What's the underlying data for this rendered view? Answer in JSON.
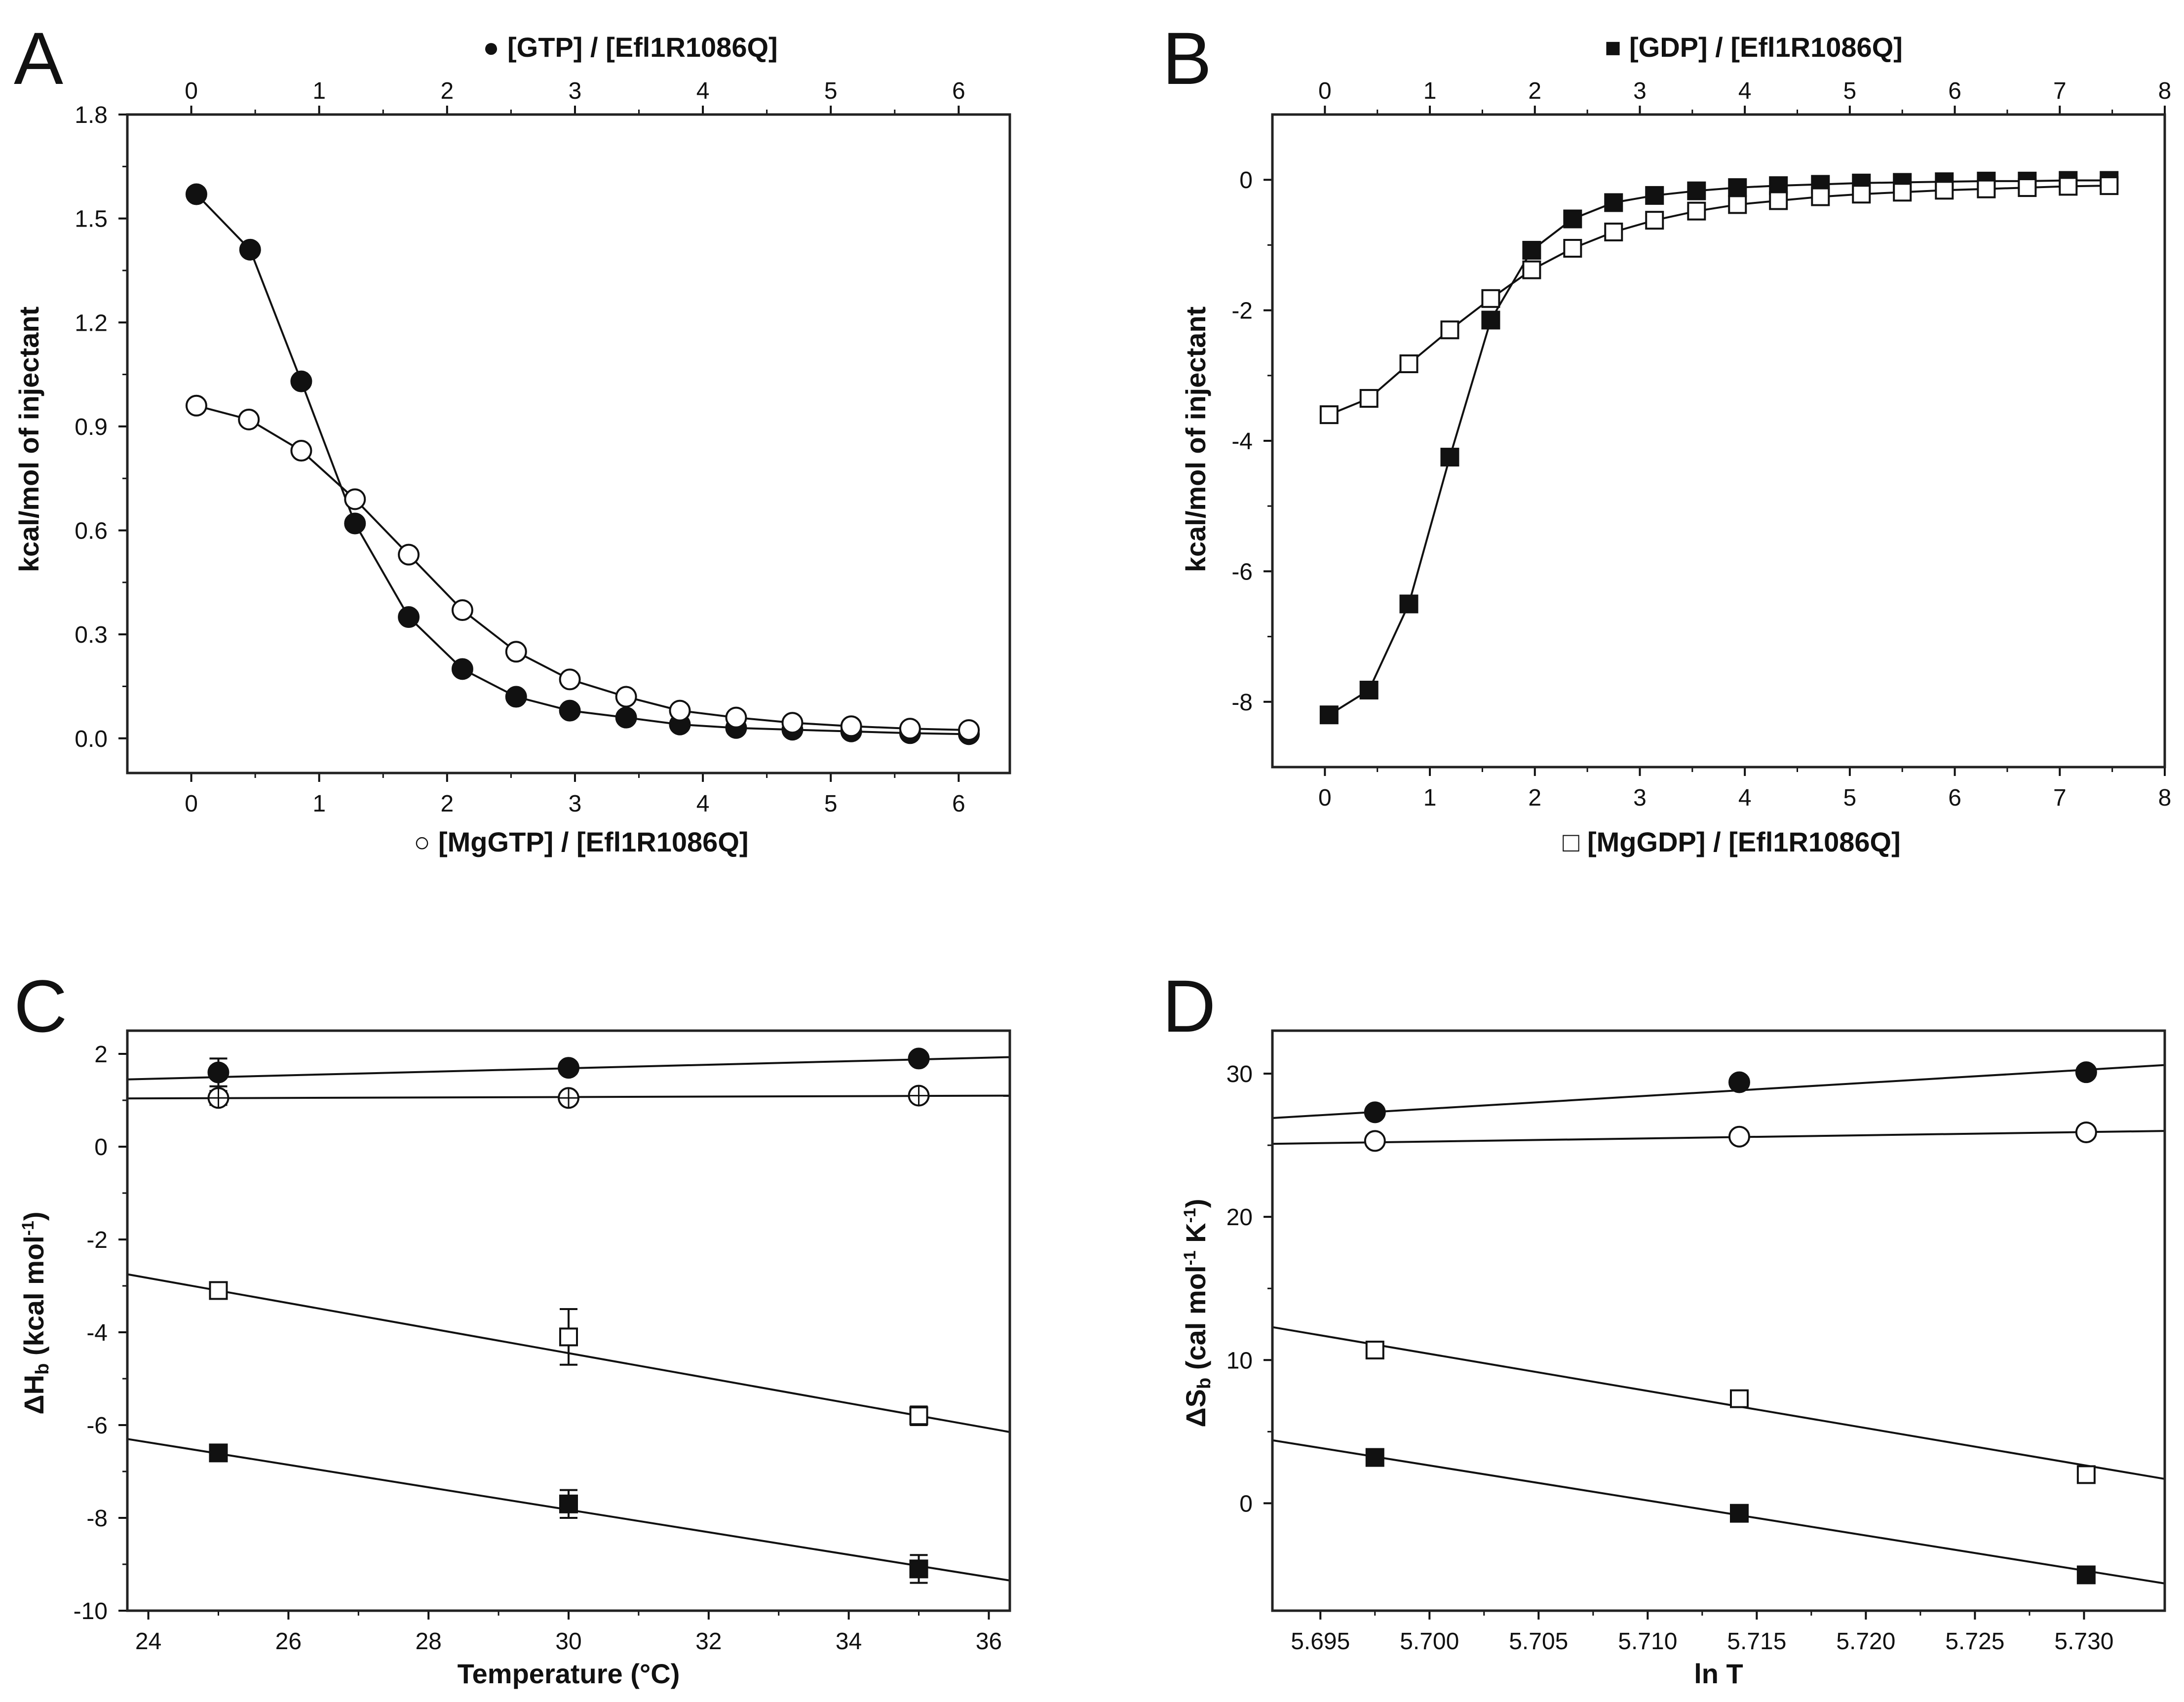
{
  "figure": {
    "background": "#ffffff",
    "ink": "#111111"
  },
  "chart_data": [
    {
      "panel": "A",
      "type": "line",
      "title": "",
      "x_top_label": "[GTP] / [Efl1R1086Q]",
      "x_top_symbol": "●",
      "xlabel": "[MgGTP] / [Efl1R1086Q]",
      "xlabel_symbol": "○",
      "ylabel": "kcal/mol of injectant",
      "xlim": [
        -0.5,
        6.4
      ],
      "ylim": [
        -0.1,
        1.8
      ],
      "x_ticks": [
        0,
        1,
        2,
        3,
        4,
        5,
        6
      ],
      "x_tick_labels": [
        "0",
        "1",
        "2",
        "3",
        "4",
        "5",
        "6"
      ],
      "y_ticks": [
        0.0,
        0.3,
        0.6,
        0.9,
        1.2,
        1.5,
        1.8
      ],
      "y_tick_labels": [
        "0.0",
        "0.3",
        "0.6",
        "0.9",
        "1.2",
        "1.5",
        "1.8"
      ],
      "series": [
        {
          "name": "GTP",
          "marker": "circle",
          "filled": true,
          "connect": true,
          "x": [
            0.04,
            0.46,
            0.86,
            1.28,
            1.7,
            2.12,
            2.54,
            2.96,
            3.4,
            3.82,
            4.26,
            4.7,
            5.16,
            5.62,
            6.08
          ],
          "y": [
            1.57,
            1.41,
            1.03,
            0.62,
            0.35,
            0.2,
            0.12,
            0.08,
            0.06,
            0.04,
            0.03,
            0.025,
            0.02,
            0.015,
            0.012
          ]
        },
        {
          "name": "MgGTP",
          "marker": "circle",
          "filled": false,
          "connect": true,
          "x": [
            0.04,
            0.45,
            0.86,
            1.28,
            1.7,
            2.12,
            2.54,
            2.96,
            3.4,
            3.82,
            4.26,
            4.7,
            5.16,
            5.62,
            6.08
          ],
          "y": [
            0.96,
            0.92,
            0.83,
            0.69,
            0.53,
            0.37,
            0.25,
            0.17,
            0.12,
            0.08,
            0.06,
            0.045,
            0.035,
            0.028,
            0.024
          ]
        }
      ]
    },
    {
      "panel": "B",
      "type": "line",
      "title": "",
      "x_top_label": "[GDP] / [Efl1R1086Q]",
      "x_top_symbol": "■",
      "xlabel": "[MgGDP] / [Efl1R1086Q]",
      "xlabel_symbol": "□",
      "ylabel": "kcal/mol of injectant",
      "xlim": [
        -0.5,
        8.0
      ],
      "ylim": [
        -9.0,
        1.0
      ],
      "x_ticks": [
        0,
        1,
        2,
        3,
        4,
        5,
        6,
        7,
        8
      ],
      "x_tick_labels": [
        "0",
        "1",
        "2",
        "3",
        "4",
        "5",
        "6",
        "7",
        "8"
      ],
      "y_ticks": [
        -8,
        -6,
        -4,
        -2,
        0
      ],
      "y_tick_labels": [
        "-8",
        "-6",
        "-4",
        "-2",
        "0"
      ],
      "series": [
        {
          "name": "GDP",
          "marker": "square",
          "filled": true,
          "connect": true,
          "x": [
            0.04,
            0.42,
            0.8,
            1.19,
            1.58,
            1.97,
            2.36,
            2.75,
            3.14,
            3.54,
            3.93,
            4.32,
            4.72,
            5.11,
            5.5,
            5.9,
            6.3,
            6.69,
            7.08,
            7.47
          ],
          "y": [
            -8.2,
            -7.82,
            -6.5,
            -4.25,
            -2.15,
            -1.08,
            -0.6,
            -0.35,
            -0.24,
            -0.17,
            -0.12,
            -0.09,
            -0.07,
            -0.05,
            -0.04,
            -0.03,
            -0.02,
            -0.02,
            -0.01,
            -0.01
          ]
        },
        {
          "name": "MgGDP",
          "marker": "square",
          "filled": false,
          "connect": true,
          "x": [
            0.04,
            0.42,
            0.8,
            1.19,
            1.58,
            1.97,
            2.36,
            2.75,
            3.14,
            3.54,
            3.93,
            4.32,
            4.72,
            5.11,
            5.5,
            5.9,
            6.3,
            6.69,
            7.08,
            7.47
          ],
          "y": [
            -3.6,
            -3.35,
            -2.82,
            -2.3,
            -1.82,
            -1.38,
            -1.05,
            -0.8,
            -0.62,
            -0.48,
            -0.38,
            -0.32,
            -0.26,
            -0.22,
            -0.19,
            -0.16,
            -0.14,
            -0.12,
            -0.1,
            -0.09
          ]
        }
      ]
    },
    {
      "panel": "C",
      "type": "scatter",
      "title": "",
      "xlabel": "Temperature  (°C)",
      "ylabel": "ΔH",
      "ylabel_sub": "b",
      "ylabel_unit": " (kcal mol",
      "ylabel_sup": "-1",
      "ylabel_end": ")",
      "xlim": [
        23.7,
        36.3
      ],
      "ylim": [
        -10,
        2.5
      ],
      "x_ticks": [
        24,
        26,
        28,
        30,
        32,
        34,
        36
      ],
      "x_tick_labels": [
        "24",
        "26",
        "28",
        "30",
        "32",
        "34",
        "36"
      ],
      "y_ticks": [
        -10,
        -8,
        -6,
        -4,
        -2,
        0,
        2
      ],
      "y_tick_labels": [
        "-10",
        "-8",
        "-6",
        "-4",
        "-2",
        "0",
        "2"
      ],
      "series": [
        {
          "name": "GTP",
          "marker": "circle",
          "filled": true,
          "x": [
            25,
            30,
            35
          ],
          "y": [
            1.6,
            1.7,
            1.9
          ],
          "err": [
            0.3,
            0.12,
            0.1
          ],
          "fit": [
            [
              23.7,
              1.45
            ],
            [
              36.3,
              1.93
            ]
          ]
        },
        {
          "name": "MgGTP",
          "marker": "circle-cross",
          "filled": false,
          "x": [
            25,
            30,
            35
          ],
          "y": [
            1.05,
            1.05,
            1.1
          ],
          "err": [
            0.15,
            0.05,
            0.05
          ],
          "fit": [
            [
              23.7,
              1.04
            ],
            [
              36.3,
              1.1
            ]
          ]
        },
        {
          "name": "MgGDP",
          "marker": "square",
          "filled": false,
          "x": [
            25,
            30,
            35
          ],
          "y": [
            -3.1,
            -4.1,
            -5.8
          ],
          "err": [
            0.12,
            0.6,
            0.2
          ],
          "fit": [
            [
              23.7,
              -2.75
            ],
            [
              36.3,
              -6.15
            ]
          ]
        },
        {
          "name": "GDP",
          "marker": "square",
          "filled": true,
          "x": [
            25,
            30,
            35
          ],
          "y": [
            -6.6,
            -7.7,
            -9.1
          ],
          "err": [
            0.15,
            0.3,
            0.3
          ],
          "fit": [
            [
              23.7,
              -6.3
            ],
            [
              36.3,
              -9.35
            ]
          ]
        }
      ]
    },
    {
      "panel": "D",
      "type": "scatter",
      "title": "",
      "xlabel": "ln T",
      "ylabel": "ΔS",
      "ylabel_sub": "b",
      "ylabel_unit": " (cal mol",
      "ylabel_sup": "-1",
      "ylabel_mid": " K",
      "ylabel_sup2": "-1",
      "ylabel_end": ")",
      "xlim": [
        5.6928,
        5.7337
      ],
      "ylim": [
        -7.5,
        33
      ],
      "x_ticks": [
        5.695,
        5.7,
        5.705,
        5.71,
        5.715,
        5.72,
        5.725,
        5.73
      ],
      "x_tick_labels": [
        "5.695",
        "5.700",
        "5.705",
        "5.710",
        "5.715",
        "5.720",
        "5.725",
        "5.730"
      ],
      "y_ticks": [
        0,
        10,
        20,
        30
      ],
      "y_tick_labels": [
        "0",
        "10",
        "20",
        "30"
      ],
      "series": [
        {
          "name": "GTP",
          "marker": "circle",
          "filled": true,
          "x": [
            5.6975,
            5.7142,
            5.7301
          ],
          "y": [
            27.3,
            29.4,
            30.1
          ],
          "fit": [
            [
              5.6928,
              26.9
            ],
            [
              5.7337,
              30.6
            ]
          ]
        },
        {
          "name": "MgGTP",
          "marker": "circle",
          "filled": false,
          "x": [
            5.6975,
            5.7142,
            5.7301
          ],
          "y": [
            25.3,
            25.6,
            25.9
          ],
          "fit": [
            [
              5.6928,
              25.1
            ],
            [
              5.7337,
              26.0
            ]
          ]
        },
        {
          "name": "MgGDP",
          "marker": "square",
          "filled": false,
          "x": [
            5.6975,
            5.7142,
            5.7301
          ],
          "y": [
            10.7,
            7.3,
            2.0
          ],
          "fit": [
            [
              5.6928,
              12.3
            ],
            [
              5.7337,
              1.7
            ]
          ]
        },
        {
          "name": "GDP",
          "marker": "square",
          "filled": true,
          "x": [
            5.6975,
            5.7142,
            5.7301
          ],
          "y": [
            3.2,
            -0.7,
            -5.0
          ],
          "fit": [
            [
              5.6928,
              4.4
            ],
            [
              5.7337,
              -5.6
            ]
          ]
        }
      ]
    }
  ]
}
